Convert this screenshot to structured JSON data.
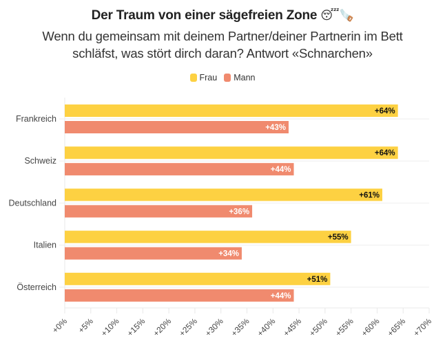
{
  "title": "Der Traum von einer sägefreien Zone",
  "title_emojis": "😴🪚",
  "subtitle_line1": "Wenn du gemeinsam mit deinem Partner/deiner Partnerin im Bett",
  "subtitle_line2": "schläfst, was stört dirch daran? Antwort «Schnarchen»",
  "colors": {
    "frau": "#fdd142",
    "mann": "#f08a6e",
    "grid": "#e8e8e8"
  },
  "chart_data": {
    "type": "bar",
    "orientation": "horizontal",
    "title": "Der Traum von einer sägefreien Zone",
    "subtitle": "Wenn du gemeinsam mit deinem Partner/deiner Partnerin im Bett schläfst, was stört dirch daran? Antwort «Schnarchen»",
    "categories": [
      "Frankreich",
      "Schweiz",
      "Deutschland",
      "Italien",
      "Österreich"
    ],
    "series": [
      {
        "name": "Frau",
        "values": [
          64,
          64,
          61,
          55,
          51
        ],
        "labels": [
          "+64%",
          "+64%",
          "+61%",
          "+55%",
          "+51%"
        ]
      },
      {
        "name": "Mann",
        "values": [
          43,
          44,
          36,
          34,
          44
        ],
        "labels": [
          "+43%",
          "+44%",
          "+36%",
          "+34%",
          "+44%"
        ]
      }
    ],
    "xlim": [
      0,
      70
    ],
    "xticks": [
      0,
      5,
      10,
      15,
      20,
      25,
      30,
      35,
      40,
      45,
      50,
      55,
      60,
      65,
      70
    ],
    "xtick_labels": [
      "+0%",
      "+5%",
      "+10%",
      "+15%",
      "+20%",
      "+25%",
      "+30%",
      "+35%",
      "+40%",
      "+45%",
      "+50%",
      "+55%",
      "+60%",
      "+65%",
      "+70%"
    ],
    "xlabel": "",
    "ylabel": "",
    "legend": {
      "position": "top-center",
      "entries": [
        "Frau",
        "Mann"
      ]
    },
    "grid": true
  }
}
